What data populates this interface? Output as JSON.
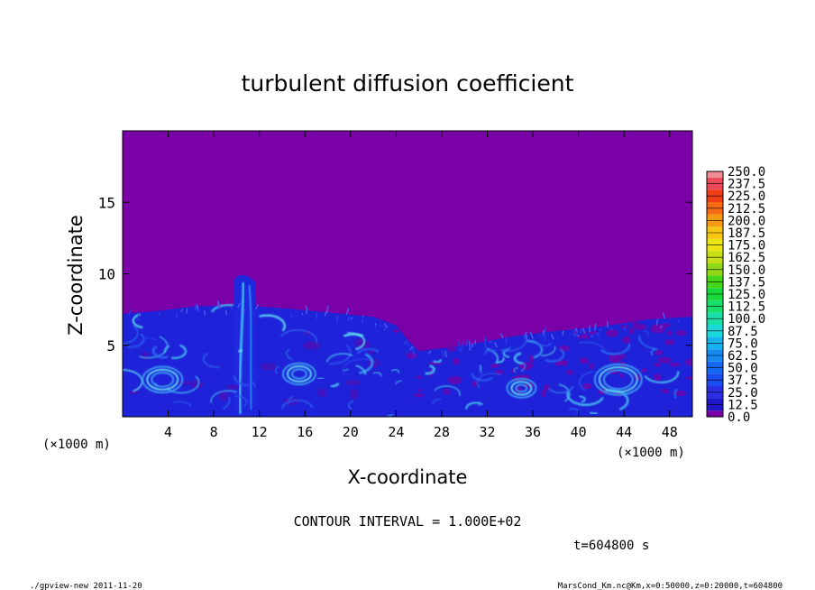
{
  "chart_data": {
    "type": "heatmap",
    "title": "turbulent diffusion coefficient",
    "xlabel": "X-coordinate",
    "ylabel": "Z-coordinate",
    "x_unit": "(×1000 m)",
    "y_unit": "(×1000 m)",
    "xlim": [
      0,
      50
    ],
    "ylim": [
      0,
      20
    ],
    "x_ticks": [
      "4",
      "8",
      "12",
      "16",
      "20",
      "24",
      "28",
      "32",
      "36",
      "40",
      "44",
      "48"
    ],
    "y_ticks": [
      "5",
      "10",
      "15"
    ],
    "x_tick_values": [
      4,
      8,
      12,
      16,
      20,
      24,
      28,
      32,
      36,
      40,
      44,
      48
    ],
    "y_tick_values": [
      5,
      10,
      15
    ],
    "colorbar": {
      "levels": [
        "0.0",
        "12.5",
        "25.0",
        "37.5",
        "50.0",
        "62.5",
        "75.0",
        "87.5",
        "100.0",
        "112.5",
        "125.0",
        "137.5",
        "150.0",
        "162.5",
        "175.0",
        "187.5",
        "200.0",
        "212.5",
        "225.0",
        "237.5",
        "250.0"
      ],
      "colors": [
        "#7a00a8",
        "#1f17c8",
        "#2a2fe6",
        "#1b4cf0",
        "#1568f2",
        "#1489f0",
        "#14b2ee",
        "#1ad7d9",
        "#19e0a8",
        "#18de6a",
        "#19d83a",
        "#44d618",
        "#8fd815",
        "#c6df14",
        "#eae513",
        "#f8c612",
        "#f89913",
        "#f66a14",
        "#ef3d16",
        "#ec4a57",
        "#ee8b93"
      ]
    },
    "boundary_layer_top_km": [
      {
        "x": 0,
        "z": 7.2
      },
      {
        "x": 3,
        "z": 7.4
      },
      {
        "x": 6,
        "z": 7.7
      },
      {
        "x": 10,
        "z": 7.8
      },
      {
        "x": 14,
        "z": 7.6
      },
      {
        "x": 18,
        "z": 7.3
      },
      {
        "x": 22,
        "z": 7.0
      },
      {
        "x": 24,
        "z": 6.4
      },
      {
        "x": 25,
        "z": 5.4
      },
      {
        "x": 26,
        "z": 4.6
      },
      {
        "x": 30,
        "z": 5.0
      },
      {
        "x": 34,
        "z": 5.6
      },
      {
        "x": 38,
        "z": 6.0
      },
      {
        "x": 42,
        "z": 6.3
      },
      {
        "x": 46,
        "z": 6.8
      },
      {
        "x": 50,
        "z": 7.0
      }
    ],
    "plume_top_km": {
      "x": 10.5,
      "z": 10.0
    },
    "background_value": "0.0",
    "bulk_value_range": [
      "12.5",
      "87.5"
    ]
  },
  "annotations": {
    "contour_interval": "CONTOUR INTERVAL = 1.000E+02",
    "time": "t=604800 s",
    "footer_left": "./gpview-new  2011-11-20",
    "footer_right": "MarsCond_Km.nc@Km,x=0:50000,z=0:20000,t=604800"
  }
}
